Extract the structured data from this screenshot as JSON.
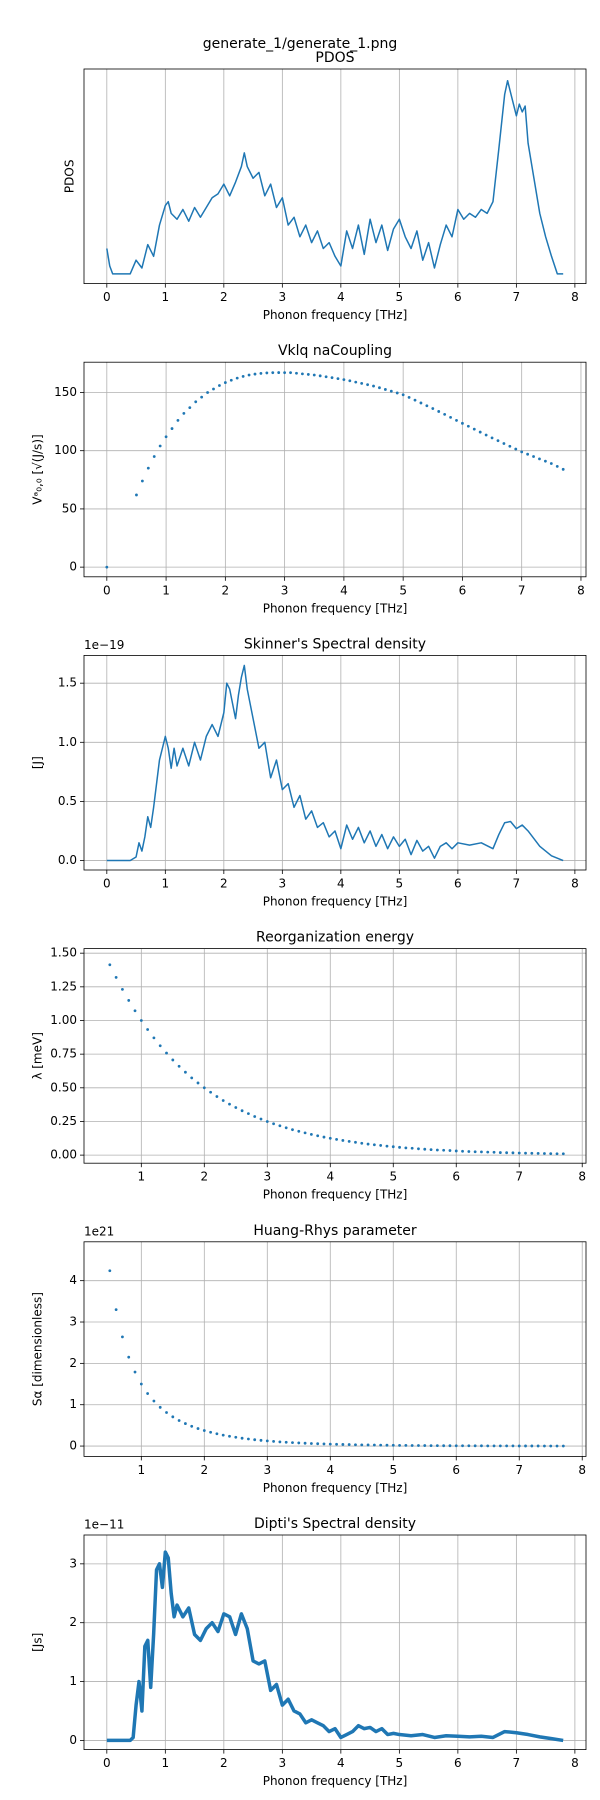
{
  "figure_title": "generate_1/generate_1.png",
  "chart_data": [
    {
      "type": "line",
      "title": "PDOS",
      "xlabel": "Phonon frequency [THz]",
      "ylabel": "PDOS",
      "color": "#1f77b4",
      "grid": true,
      "xlim": [
        -0.39,
        8.19
      ],
      "ylim": [
        -0.05,
        1.05
      ],
      "xticks": [
        0,
        1,
        2,
        3,
        4,
        5,
        6,
        7,
        8
      ],
      "x": [
        0,
        0.05,
        0.1,
        0.4,
        0.5,
        0.6,
        0.7,
        0.8,
        0.9,
        1.0,
        1.05,
        1.1,
        1.2,
        1.3,
        1.4,
        1.5,
        1.6,
        1.7,
        1.8,
        1.9,
        2.0,
        2.1,
        2.2,
        2.3,
        2.35,
        2.4,
        2.5,
        2.6,
        2.7,
        2.8,
        2.9,
        3.0,
        3.1,
        3.2,
        3.3,
        3.4,
        3.5,
        3.6,
        3.7,
        3.8,
        3.9,
        4.0,
        4.1,
        4.2,
        4.3,
        4.4,
        4.5,
        4.6,
        4.7,
        4.8,
        4.9,
        5.0,
        5.1,
        5.2,
        5.3,
        5.4,
        5.5,
        5.6,
        5.7,
        5.8,
        5.9,
        6.0,
        6.1,
        6.2,
        6.3,
        6.4,
        6.5,
        6.6,
        6.7,
        6.8,
        6.85,
        6.9,
        7.0,
        7.05,
        7.1,
        7.15,
        7.2,
        7.3,
        7.4,
        7.5,
        7.6,
        7.7,
        7.8
      ],
      "values": [
        0.13,
        0.04,
        0,
        0,
        0.07,
        0.03,
        0.15,
        0.09,
        0.25,
        0.35,
        0.37,
        0.31,
        0.28,
        0.33,
        0.27,
        0.34,
        0.29,
        0.34,
        0.39,
        0.41,
        0.46,
        0.4,
        0.47,
        0.55,
        0.62,
        0.55,
        0.49,
        0.52,
        0.4,
        0.46,
        0.34,
        0.39,
        0.25,
        0.29,
        0.19,
        0.25,
        0.16,
        0.22,
        0.13,
        0.16,
        0.09,
        0.04,
        0.22,
        0.13,
        0.25,
        0.1,
        0.28,
        0.16,
        0.25,
        0.12,
        0.23,
        0.28,
        0.19,
        0.13,
        0.22,
        0.07,
        0.16,
        0.03,
        0.15,
        0.25,
        0.19,
        0.33,
        0.28,
        0.31,
        0.29,
        0.33,
        0.31,
        0.37,
        0.64,
        0.92,
        0.99,
        0.93,
        0.81,
        0.87,
        0.83,
        0.86,
        0.67,
        0.49,
        0.31,
        0.19,
        0.09,
        0,
        0
      ]
    },
    {
      "type": "scatter",
      "title": "Vklq naCoupling",
      "xlabel": "Phonon frequency [THz]",
      "ylabel": "Vᵃ₀,₀ [√(J/s)]",
      "color": "#1f77b4",
      "grid": true,
      "xlim": [
        -0.385,
        8.085
      ],
      "ylim": [
        -8.3,
        176
      ],
      "xticks": [
        0,
        1,
        2,
        3,
        4,
        5,
        6,
        7,
        8
      ],
      "yticks": [
        0,
        50,
        100,
        150
      ],
      "x": [
        0,
        0.5,
        0.6,
        0.7,
        0.8,
        0.9,
        1.0,
        1.1,
        1.2,
        1.3,
        1.4,
        1.5,
        1.6,
        1.7,
        1.8,
        1.9,
        2.0,
        2.1,
        2.2,
        2.3,
        2.4,
        2.5,
        2.6,
        2.7,
        2.8,
        2.9,
        3.0,
        3.1,
        3.2,
        3.3,
        3.4,
        3.5,
        3.6,
        3.7,
        3.8,
        3.9,
        4.0,
        4.1,
        4.2,
        4.3,
        4.4,
        4.5,
        4.6,
        4.7,
        4.8,
        4.9,
        5.0,
        5.1,
        5.2,
        5.3,
        5.4,
        5.5,
        5.6,
        5.7,
        5.8,
        5.9,
        6.0,
        6.1,
        6.2,
        6.3,
        6.4,
        6.5,
        6.6,
        6.7,
        6.8,
        6.9,
        7.0,
        7.1,
        7.2,
        7.3,
        7.4,
        7.5,
        7.6,
        7.7
      ],
      "values": [
        0,
        62,
        74,
        85,
        95,
        104,
        112,
        119,
        126,
        132,
        137,
        142,
        146,
        150,
        153,
        156,
        158.5,
        160.5,
        162.3,
        163.8,
        165,
        165.8,
        166.4,
        166.8,
        167,
        167.1,
        167,
        167,
        166.5,
        166,
        165.5,
        165,
        164.3,
        163.5,
        162.7,
        161.9,
        161,
        160,
        158.9,
        157.8,
        156.7,
        155.5,
        154.1,
        152.6,
        151.1,
        149.6,
        148,
        145.8,
        143.4,
        141,
        138.6,
        136.2,
        133.7,
        131.2,
        128.6,
        126,
        123.5,
        121,
        118.5,
        116,
        113.5,
        111,
        108.6,
        106.2,
        103.8,
        101.4,
        99,
        97,
        95,
        93,
        91,
        89,
        86.5,
        84
      ]
    },
    {
      "type": "line",
      "title": "Skinner's Spectral density",
      "xlabel": "Phonon frequency [THz]",
      "ylabel": "[J]",
      "offset_text": "1e−19",
      "color": "#1f77b4",
      "grid": true,
      "xlim": [
        -0.39,
        8.19
      ],
      "ylim": [
        -0.08,
        1.735
      ],
      "xticks": [
        0,
        1,
        2,
        3,
        4,
        5,
        6,
        7,
        8
      ],
      "yticks": [
        {
          "value": 0,
          "label": "0.0"
        },
        0.5,
        {
          "value": 1,
          "label": "1.0"
        },
        1.5
      ],
      "x": [
        0,
        0.4,
        0.5,
        0.55,
        0.6,
        0.65,
        0.7,
        0.75,
        0.8,
        0.9,
        1.0,
        1.05,
        1.1,
        1.15,
        1.2,
        1.3,
        1.4,
        1.5,
        1.6,
        1.7,
        1.8,
        1.9,
        2.0,
        2.05,
        2.1,
        2.2,
        2.25,
        2.3,
        2.35,
        2.4,
        2.5,
        2.6,
        2.7,
        2.8,
        2.9,
        3.0,
        3.1,
        3.2,
        3.3,
        3.4,
        3.5,
        3.6,
        3.7,
        3.8,
        3.9,
        4.0,
        4.1,
        4.2,
        4.3,
        4.4,
        4.5,
        4.6,
        4.7,
        4.8,
        4.9,
        5.0,
        5.1,
        5.2,
        5.3,
        5.4,
        5.5,
        5.6,
        5.7,
        5.8,
        5.9,
        6.0,
        6.2,
        6.4,
        6.6,
        6.7,
        6.8,
        6.9,
        7.0,
        7.1,
        7.2,
        7.4,
        7.6,
        7.8
      ],
      "values": [
        0,
        0,
        0.03,
        0.15,
        0.08,
        0.2,
        0.37,
        0.28,
        0.45,
        0.85,
        1.05,
        0.95,
        0.78,
        0.95,
        0.8,
        0.95,
        0.8,
        1.0,
        0.85,
        1.05,
        1.15,
        1.05,
        1.25,
        1.5,
        1.45,
        1.2,
        1.4,
        1.55,
        1.65,
        1.45,
        1.2,
        0.95,
        1.0,
        0.7,
        0.85,
        0.6,
        0.65,
        0.45,
        0.55,
        0.35,
        0.42,
        0.28,
        0.32,
        0.2,
        0.25,
        0.1,
        0.3,
        0.18,
        0.28,
        0.15,
        0.25,
        0.12,
        0.22,
        0.1,
        0.2,
        0.12,
        0.18,
        0.05,
        0.17,
        0.08,
        0.12,
        0.02,
        0.12,
        0.15,
        0.1,
        0.15,
        0.13,
        0.15,
        0.1,
        0.22,
        0.32,
        0.33,
        0.27,
        0.3,
        0.25,
        0.12,
        0.04,
        0
      ]
    },
    {
      "type": "scatter",
      "title": "Reorganization energy",
      "xlabel": "Phonon frequency [THz]",
      "ylabel": "λ [meV]",
      "color": "#1f77b4",
      "grid": true,
      "xlim": [
        0.09,
        8.06
      ],
      "ylim": [
        -0.06,
        1.534
      ],
      "xticks": [
        1,
        2,
        3,
        4,
        5,
        6,
        7,
        8
      ],
      "yticks": [
        {
          "value": 0,
          "label": "0.00"
        },
        0.25,
        {
          "value": 0.5,
          "label": "0.50"
        },
        0.75,
        {
          "value": 1,
          "label": "1.00"
        },
        1.25,
        {
          "value": 1.5,
          "label": "1.50"
        }
      ],
      "x": [
        0.5,
        0.6,
        0.7,
        0.8,
        0.9,
        1.0,
        1.1,
        1.2,
        1.3,
        1.4,
        1.5,
        1.6,
        1.7,
        1.8,
        1.9,
        2.0,
        2.1,
        2.2,
        2.3,
        2.4,
        2.5,
        2.6,
        2.7,
        2.8,
        2.9,
        3.0,
        3.1,
        3.2,
        3.3,
        3.4,
        3.5,
        3.6,
        3.7,
        3.8,
        3.9,
        4.0,
        4.1,
        4.2,
        4.3,
        4.4,
        4.5,
        4.6,
        4.7,
        4.8,
        4.9,
        5.0,
        5.1,
        5.2,
        5.3,
        5.4,
        5.5,
        5.6,
        5.7,
        5.8,
        5.9,
        6.0,
        6.1,
        6.2,
        6.3,
        6.4,
        6.5,
        6.6,
        6.7,
        6.8,
        6.9,
        7.0,
        7.1,
        7.2,
        7.3,
        7.4,
        7.5,
        7.6,
        7.7
      ],
      "values": [
        1.414,
        1.32,
        1.231,
        1.149,
        1.072,
        1.0,
        0.933,
        0.871,
        0.812,
        0.758,
        0.707,
        0.66,
        0.616,
        0.574,
        0.536,
        0.5,
        0.467,
        0.435,
        0.406,
        0.379,
        0.354,
        0.33,
        0.308,
        0.287,
        0.268,
        0.25,
        0.233,
        0.218,
        0.203,
        0.189,
        0.177,
        0.165,
        0.154,
        0.144,
        0.134,
        0.125,
        0.117,
        0.109,
        0.102,
        0.095,
        0.088,
        0.082,
        0.077,
        0.072,
        0.067,
        0.0625,
        0.058,
        0.054,
        0.051,
        0.047,
        0.044,
        0.041,
        0.038,
        0.036,
        0.034,
        0.031,
        0.029,
        0.027,
        0.025,
        0.024,
        0.022,
        0.021,
        0.019,
        0.018,
        0.017,
        0.016,
        0.015,
        0.014,
        0.013,
        0.012,
        0.011,
        0.01,
        0.0098
      ]
    },
    {
      "type": "scatter",
      "title": "Huang-Rhys parameter",
      "xlabel": "Phonon frequency [THz]",
      "ylabel": "Sα [dimensionless]",
      "offset_text": "1e21",
      "color": "#1f77b4",
      "grid": true,
      "xlim": [
        0.09,
        8.06
      ],
      "ylim": [
        -0.25,
        4.94
      ],
      "xticks": [
        1,
        2,
        3,
        4,
        5,
        6,
        7,
        8
      ],
      "yticks": [
        0,
        1,
        2,
        3,
        4
      ],
      "x": [
        0.5,
        0.6,
        0.7,
        0.8,
        0.9,
        1.0,
        1.1,
        1.2,
        1.3,
        1.4,
        1.5,
        1.6,
        1.7,
        1.8,
        1.9,
        2.0,
        2.1,
        2.2,
        2.3,
        2.4,
        2.5,
        2.6,
        2.7,
        2.8,
        2.9,
        3.0,
        3.1,
        3.2,
        3.3,
        3.4,
        3.5,
        3.6,
        3.7,
        3.8,
        3.9,
        4.0,
        4.1,
        4.2,
        4.3,
        4.4,
        4.5,
        4.6,
        4.7,
        4.8,
        4.9,
        5.0,
        5.1,
        5.2,
        5.3,
        5.4,
        5.5,
        5.6,
        5.7,
        5.8,
        5.9,
        6.0,
        6.1,
        6.2,
        6.3,
        6.4,
        6.5,
        6.6,
        6.7,
        6.8,
        6.9,
        7.0,
        7.1,
        7.2,
        7.3,
        7.4,
        7.5,
        7.6,
        7.7
      ],
      "values": [
        4.24,
        3.3,
        2.64,
        2.15,
        1.79,
        1.5,
        1.27,
        1.09,
        0.937,
        0.812,
        0.707,
        0.619,
        0.544,
        0.478,
        0.423,
        0.375,
        0.334,
        0.297,
        0.265,
        0.237,
        0.212,
        0.19,
        0.171,
        0.154,
        0.139,
        0.125,
        0.113,
        0.102,
        0.092,
        0.083,
        0.076,
        0.069,
        0.062,
        0.057,
        0.052,
        0.047,
        0.043,
        0.039,
        0.036,
        0.032,
        0.029,
        0.027,
        0.025,
        0.022,
        0.021,
        0.019,
        0.017,
        0.016,
        0.014,
        0.013,
        0.012,
        0.011,
        0.01,
        0.009,
        0.009,
        0.008,
        0.007,
        0.007,
        0.006,
        0.006,
        0.005,
        0.005,
        0.004,
        0.004,
        0.004,
        0.003,
        0.003,
        0.003,
        0.003,
        0.002,
        0.002,
        0.002,
        0.002
      ]
    },
    {
      "type": "line",
      "title": "Dipti's Spectral density",
      "xlabel": "Phonon frequency [THz]",
      "ylabel": "[Js]",
      "offset_text": "1e−11",
      "color": "#1f77b4",
      "line_width": 3.5,
      "grid": true,
      "xlim": [
        -0.39,
        8.19
      ],
      "ylim": [
        -0.156,
        3.49
      ],
      "xticks": [
        0,
        1,
        2,
        3,
        4,
        5,
        6,
        7,
        8
      ],
      "yticks": [
        0,
        1,
        2,
        3
      ],
      "x": [
        0,
        0.4,
        0.45,
        0.5,
        0.55,
        0.6,
        0.65,
        0.7,
        0.75,
        0.8,
        0.85,
        0.9,
        0.95,
        1.0,
        1.05,
        1.1,
        1.15,
        1.2,
        1.3,
        1.4,
        1.5,
        1.6,
        1.7,
        1.8,
        1.9,
        2.0,
        2.1,
        2.2,
        2.3,
        2.4,
        2.5,
        2.6,
        2.7,
        2.8,
        2.9,
        3.0,
        3.1,
        3.2,
        3.3,
        3.4,
        3.5,
        3.6,
        3.7,
        3.8,
        3.9,
        4.0,
        4.1,
        4.2,
        4.3,
        4.4,
        4.5,
        4.6,
        4.7,
        4.8,
        4.9,
        5.0,
        5.2,
        5.4,
        5.6,
        5.8,
        6.0,
        6.2,
        6.4,
        6.6,
        6.8,
        7.0,
        7.2,
        7.4,
        7.6,
        7.8
      ],
      "values": [
        0,
        0,
        0.05,
        0.6,
        1.0,
        0.5,
        1.6,
        1.7,
        0.9,
        1.8,
        2.9,
        3.0,
        2.6,
        3.2,
        3.1,
        2.5,
        2.1,
        2.3,
        2.1,
        2.25,
        1.8,
        1.7,
        1.9,
        2.0,
        1.85,
        2.15,
        2.1,
        1.8,
        2.15,
        1.9,
        1.35,
        1.3,
        1.35,
        0.85,
        0.95,
        0.6,
        0.7,
        0.5,
        0.45,
        0.3,
        0.35,
        0.3,
        0.25,
        0.15,
        0.2,
        0.05,
        0.1,
        0.15,
        0.25,
        0.2,
        0.22,
        0.15,
        0.2,
        0.1,
        0.12,
        0.1,
        0.08,
        0.1,
        0.05,
        0.08,
        0.07,
        0.06,
        0.07,
        0.05,
        0.15,
        0.13,
        0.1,
        0.06,
        0.03,
        0
      ]
    }
  ]
}
